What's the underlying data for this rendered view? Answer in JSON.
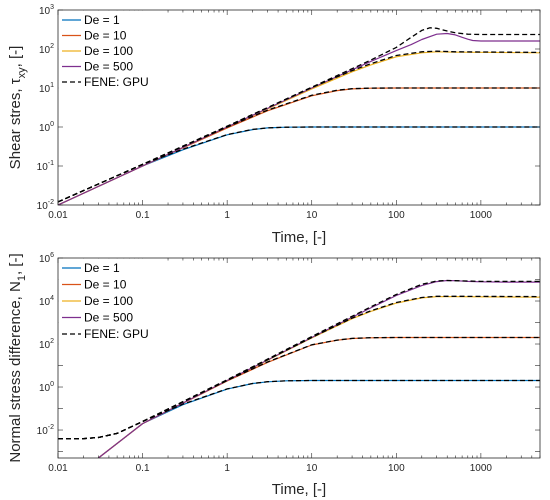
{
  "chart_data": [
    {
      "type": "line",
      "xlabel": "Time, [-]",
      "ylabel_main": "Shear stres, τ",
      "ylabel_sub": "xy",
      "ylabel_tail": ", [-]",
      "xscale": "log",
      "yscale": "log",
      "xlim": [
        0.01,
        5000
      ],
      "ylim": [
        0.01,
        1000
      ],
      "xticks": [
        {
          "value": 0.01,
          "label": "0.01"
        },
        {
          "value": 0.1,
          "label": "0.1"
        },
        {
          "value": 1,
          "label": "1"
        },
        {
          "value": 10,
          "label": "10"
        },
        {
          "value": 100,
          "label": "100"
        },
        {
          "value": 1000,
          "label": "1000"
        }
      ],
      "yticks": [
        {
          "value": 0.01,
          "base": "10",
          "exp": "-2"
        },
        {
          "value": 0.1,
          "base": "10",
          "exp": "-1"
        },
        {
          "value": 1,
          "base": "10",
          "exp": "0"
        },
        {
          "value": 10,
          "base": "10",
          "exp": "1"
        },
        {
          "value": 100,
          "base": "10",
          "exp": "2"
        },
        {
          "value": 1000,
          "base": "10",
          "exp": "3"
        }
      ],
      "grid": false,
      "legend": "top-left",
      "series": [
        {
          "name": "De = 1",
          "color": "#0072BD",
          "dash": "solid",
          "x": [
            0.01,
            0.1,
            0.3,
            1,
            2,
            3,
            5,
            10,
            100,
            5000
          ],
          "y": [
            0.01,
            0.1,
            0.26,
            0.63,
            0.86,
            0.95,
            0.99,
            1,
            1,
            1
          ]
        },
        {
          "name": "De = 10",
          "color": "#D95319",
          "dash": "solid",
          "x": [
            0.01,
            0.1,
            1,
            3,
            10,
            20,
            30,
            50,
            100,
            5000
          ],
          "y": [
            0.01,
            0.1,
            0.95,
            2.6,
            6.3,
            8.6,
            9.5,
            9.9,
            10,
            10
          ]
        },
        {
          "name": "De = 100",
          "color": "#EDB120",
          "dash": "solid",
          "x": [
            0.01,
            0.1,
            1,
            10,
            30,
            50,
            100,
            200,
            300,
            500,
            5000
          ],
          "y": [
            0.01,
            0.1,
            1,
            9.5,
            26,
            39,
            63,
            80,
            85,
            83,
            80
          ]
        },
        {
          "name": "De = 500",
          "color": "#7E2F8E",
          "dash": "solid",
          "x": [
            0.01,
            0.1,
            1,
            10,
            50,
            100,
            150,
            200,
            300,
            400,
            500,
            600,
            700,
            800,
            1000,
            2000,
            5000
          ],
          "y": [
            0.01,
            0.1,
            1,
            10,
            48,
            91,
            130,
            175,
            240,
            250,
            230,
            200,
            178,
            165,
            160,
            160,
            160
          ]
        },
        {
          "name": "FENE: GPU",
          "color": "#000000",
          "dash": "dashed",
          "x": [
            0.01,
            0.1,
            1,
            10,
            50,
            100,
            150,
            200,
            250,
            300,
            400,
            500,
            700,
            1000,
            2000,
            5000
          ],
          "y": [
            0.012,
            0.11,
            1.05,
            10.5,
            52,
            110,
            200,
            300,
            350,
            340,
            290,
            260,
            240,
            235,
            235,
            235
          ]
        },
        {
          "name": "",
          "color": "#000000",
          "dash": "dashed",
          "x": [
            0.01,
            0.1,
            1,
            10,
            30,
            50,
            100,
            200,
            300,
            500,
            5000
          ],
          "y": [
            0.012,
            0.11,
            1.05,
            10.3,
            28,
            42,
            68,
            85,
            88,
            85,
            82
          ]
        },
        {
          "name": "",
          "color": "#000000",
          "dash": "dashed",
          "x": [
            0.01,
            0.1,
            1,
            3,
            10,
            20,
            30,
            50,
            100,
            5000
          ],
          "y": [
            0.012,
            0.11,
            1.0,
            2.7,
            6.5,
            8.8,
            9.6,
            9.95,
            10,
            10
          ]
        },
        {
          "name": "",
          "color": "#000000",
          "dash": "dashed",
          "x": [
            0.01,
            0.1,
            0.3,
            1,
            2,
            3,
            5,
            10,
            100,
            5000
          ],
          "y": [
            0.012,
            0.11,
            0.27,
            0.64,
            0.87,
            0.95,
            0.99,
            1,
            1,
            1
          ]
        }
      ]
    },
    {
      "type": "line",
      "xlabel": "Time, [-]",
      "ylabel_main": "Normal stress difference, N",
      "ylabel_sub": "1",
      "ylabel_tail": ", [-]",
      "xscale": "log",
      "yscale": "log",
      "xlim": [
        0.01,
        5000
      ],
      "ylim": [
        0.0005,
        1000000
      ],
      "xticks": [
        {
          "value": 0.01,
          "label": "0.01"
        },
        {
          "value": 0.1,
          "label": "0.1"
        },
        {
          "value": 1,
          "label": "1"
        },
        {
          "value": 10,
          "label": "10"
        },
        {
          "value": 100,
          "label": "100"
        },
        {
          "value": 1000,
          "label": "1000"
        }
      ],
      "yticks": [
        {
          "value": 0.01,
          "base": "10",
          "exp": "-2"
        },
        {
          "value": 1,
          "base": "10",
          "exp": "0"
        },
        {
          "value": 100,
          "base": "10",
          "exp": "2"
        },
        {
          "value": 10000,
          "base": "10",
          "exp": "4"
        },
        {
          "value": 1000000,
          "base": "10",
          "exp": "6"
        }
      ],
      "grid": false,
      "legend": "top-left",
      "series": [
        {
          "name": "De = 1",
          "color": "#0072BD",
          "dash": "solid",
          "x": [
            0.03,
            0.1,
            0.3,
            1,
            2,
            3,
            5,
            10,
            100,
            5000
          ],
          "y": [
            0.0005,
            0.02,
            0.15,
            0.8,
            1.45,
            1.75,
            1.95,
            2,
            2,
            2
          ]
        },
        {
          "name": "De = 10",
          "color": "#D95319",
          "dash": "solid",
          "x": [
            0.03,
            0.1,
            1,
            3,
            10,
            20,
            30,
            50,
            100,
            5000
          ],
          "y": [
            0.0005,
            0.02,
            1.9,
            14,
            90,
            150,
            180,
            195,
            200,
            200
          ]
        },
        {
          "name": "De = 100",
          "color": "#EDB120",
          "dash": "solid",
          "x": [
            0.03,
            0.1,
            1,
            10,
            30,
            50,
            100,
            200,
            300,
            500,
            5000
          ],
          "y": [
            0.0005,
            0.02,
            2,
            190,
            1500,
            3300,
            8000,
            14000,
            16000,
            16000,
            15000
          ]
        },
        {
          "name": "De = 500",
          "color": "#7E2F8E",
          "dash": "solid",
          "x": [
            0.03,
            0.1,
            1,
            10,
            50,
            100,
            200,
            300,
            400,
            500,
            700,
            1000,
            2000,
            5000
          ],
          "y": [
            0.0005,
            0.02,
            2,
            200,
            4800,
            18000,
            52000,
            80000,
            90000,
            88000,
            82000,
            78000,
            76000,
            76000
          ]
        },
        {
          "name": "FENE: GPU",
          "color": "#000000",
          "dash": "dashed",
          "x": [
            0.01,
            0.02,
            0.03,
            0.05,
            0.1,
            1,
            10,
            50,
            100,
            200,
            300,
            400,
            500,
            700,
            1000,
            2000,
            5000
          ],
          "y": [
            0.004,
            0.004,
            0.0045,
            0.007,
            0.025,
            2.2,
            220,
            5300,
            20000,
            60000,
            85000,
            90000,
            88000,
            85000,
            82000,
            82000,
            82000
          ]
        },
        {
          "name": "",
          "color": "#000000",
          "dash": "dashed",
          "x": [
            0.01,
            0.02,
            0.03,
            0.05,
            0.1,
            1,
            10,
            30,
            50,
            100,
            200,
            300,
            500,
            5000
          ],
          "y": [
            0.004,
            0.004,
            0.0045,
            0.007,
            0.025,
            2.1,
            200,
            1600,
            3500,
            8500,
            14500,
            16500,
            16500,
            16000
          ]
        },
        {
          "name": "",
          "color": "#000000",
          "dash": "dashed",
          "x": [
            0.01,
            0.02,
            0.03,
            0.05,
            0.1,
            1,
            3,
            10,
            20,
            30,
            50,
            100,
            5000
          ],
          "y": [
            0.004,
            0.004,
            0.0045,
            0.007,
            0.025,
            2,
            14.5,
            92,
            152,
            182,
            196,
            200,
            200
          ]
        },
        {
          "name": "",
          "color": "#000000",
          "dash": "dashed",
          "x": [
            0.01,
            0.02,
            0.03,
            0.05,
            0.1,
            0.3,
            1,
            2,
            3,
            5,
            10,
            100,
            5000
          ],
          "y": [
            0.004,
            0.004,
            0.0045,
            0.007,
            0.025,
            0.16,
            0.82,
            1.46,
            1.76,
            1.95,
            2,
            2,
            2
          ]
        }
      ]
    }
  ]
}
